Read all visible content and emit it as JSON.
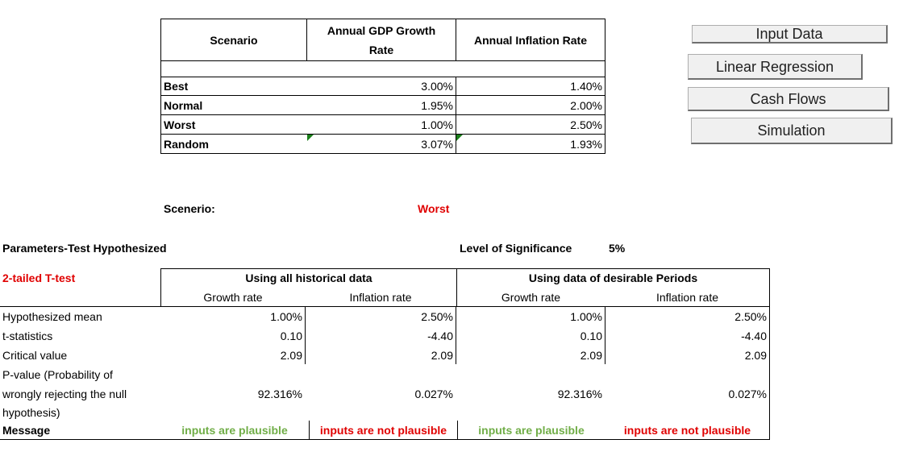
{
  "scenario_table": {
    "headers": {
      "scenario": "Scenario",
      "gdp_line1": "Annual GDP Growth",
      "gdp_line2": "Rate",
      "inflation": "Annual Inflation Rate"
    },
    "rows": [
      {
        "label": "Best",
        "gdp": "3.00%",
        "inflation": "1.40%"
      },
      {
        "label": "Normal",
        "gdp": "1.95%",
        "inflation": "2.00%"
      },
      {
        "label": "Worst",
        "gdp": "1.00%",
        "inflation": "2.50%"
      },
      {
        "label": "Random",
        "gdp": "3.07%",
        "inflation": "1.93%"
      }
    ]
  },
  "buttons": {
    "input_data": "Input Data",
    "linear_regression": "Linear Regression",
    "cash_flows": "Cash Flows",
    "simulation": "Simulation"
  },
  "scenario_select": {
    "label": "Scenerio:",
    "value": "Worst"
  },
  "parameters": {
    "title": "Parameters-Test Hypothesized",
    "significance_label": "Level of Significance",
    "significance_value": "5%"
  },
  "ttest": {
    "title": "2-tailed T-test",
    "group_all": "Using all historical data",
    "group_desirable": "Using data of desirable Periods",
    "col_growth": "Growth rate",
    "col_inflation": "Inflation rate",
    "row_labels": {
      "hypothesized_mean": "Hypothesized mean",
      "t_statistics": "t-statistics",
      "critical_value": "Critical value",
      "p_value_1": "P-value (Probability of",
      "p_value_2": "wrongly rejecting the null",
      "p_value_3": "hypothesis)",
      "message": "Message"
    },
    "values": {
      "hypothesized_mean": [
        "1.00%",
        "2.50%",
        "1.00%",
        "2.50%"
      ],
      "t_statistics": [
        "0.10",
        "-4.40",
        "0.10",
        "-4.40"
      ],
      "critical_value": [
        "2.09",
        "2.09",
        "2.09",
        "2.09"
      ],
      "p_value": [
        "92.316%",
        "0.027%",
        "92.316%",
        "0.027%"
      ],
      "message": [
        "inputs are plausible",
        "inputs are not plausible",
        "inputs are plausible",
        "inputs are not plausible"
      ]
    }
  },
  "colors": {
    "red": "#e00000",
    "green": "#70ad47",
    "button_bg": "#f0f0f0"
  }
}
